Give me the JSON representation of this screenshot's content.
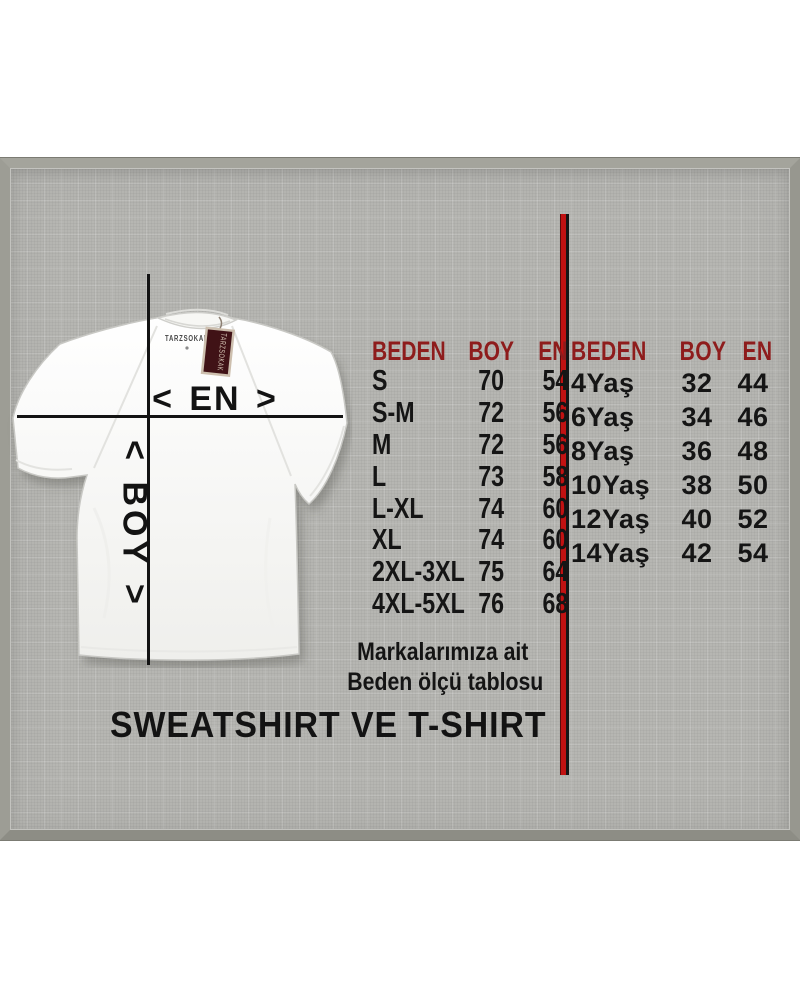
{
  "measure_diagram": {
    "en_label": "< EN >",
    "boy_label": "< BOY >",
    "collar_brand": "TARZSOKAK",
    "hang_tag_text": "TARZSOKAK"
  },
  "adult_table": {
    "headers": [
      "BEDEN",
      "BOY",
      "EN"
    ],
    "rows": [
      [
        "S",
        "70",
        "54"
      ],
      [
        "S-M",
        "72",
        "56"
      ],
      [
        "M",
        "72",
        "56"
      ],
      [
        "L",
        "73",
        "58"
      ],
      [
        "L-XL",
        "74",
        "60"
      ],
      [
        "XL",
        "74",
        "60"
      ],
      [
        "2XL-3XL",
        "75",
        "64"
      ],
      [
        "4XL-5XL",
        "76",
        "68"
      ]
    ]
  },
  "kids_table": {
    "headers": [
      "BEDEN",
      "BOY",
      "EN"
    ],
    "rows": [
      [
        "4Yaş",
        "32",
        "44"
      ],
      [
        "6Yaş",
        "34",
        "46"
      ],
      [
        "8Yaş",
        "36",
        "48"
      ],
      [
        "10Yaş",
        "38",
        "50"
      ],
      [
        "12Yaş",
        "40",
        "52"
      ],
      [
        "14Yaş",
        "42",
        "54"
      ]
    ]
  },
  "footer": {
    "note_line1": "Markalarımıza ait",
    "note_line2": "Beden ölçü tablosu",
    "title": "SWEATSHIRT VE T-SHIRT"
  },
  "colors": {
    "table_header_red": "#8e1c1c",
    "divider_red": "#c11212",
    "panel_gray": "#b6b6b2",
    "text_black": "#151515",
    "tag_maroon": "#401216"
  }
}
